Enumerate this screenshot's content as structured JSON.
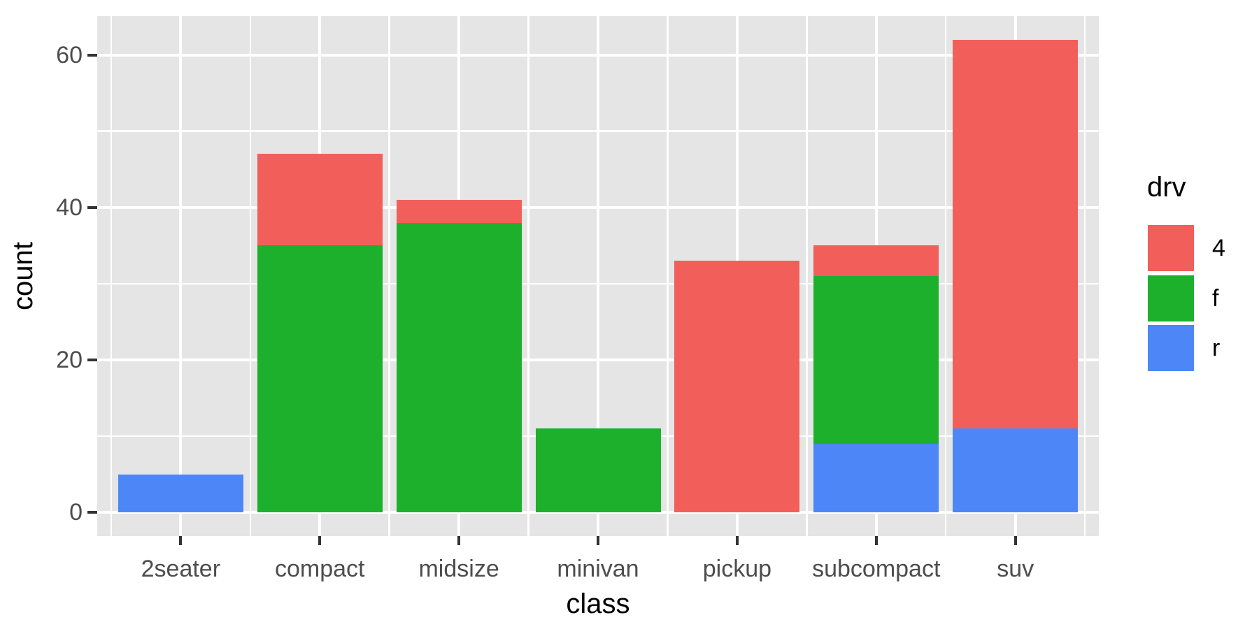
{
  "chart_data": {
    "type": "bar",
    "stacked": true,
    "title": "",
    "xlabel": "class",
    "ylabel": "count",
    "categories": [
      "2seater",
      "compact",
      "midsize",
      "minivan",
      "pickup",
      "subcompact",
      "suv"
    ],
    "series": [
      {
        "name": "4",
        "color": "#F25F5A",
        "values": [
          0,
          12,
          3,
          0,
          33,
          4,
          51
        ]
      },
      {
        "name": "f",
        "color": "#1CB02C",
        "values": [
          0,
          35,
          38,
          11,
          0,
          22,
          0
        ]
      },
      {
        "name": "r",
        "color": "#4D87F7",
        "values": [
          5,
          0,
          0,
          0,
          0,
          9,
          11
        ]
      }
    ],
    "stack_order_bottom_to_top": [
      "r",
      "f",
      "4"
    ],
    "totals": [
      5,
      47,
      41,
      11,
      33,
      35,
      62
    ],
    "yticks": [
      0,
      20,
      40,
      60
    ],
    "yminor": [
      10,
      30,
      50
    ],
    "ylim": [
      -3.1,
      65.1
    ],
    "grid": true,
    "legend_position": "right"
  },
  "legend": {
    "title": "drv",
    "items": [
      {
        "label": "4",
        "color": "#F25F5A"
      },
      {
        "label": "f",
        "color": "#1CB02C"
      },
      {
        "label": "r",
        "color": "#4D87F7"
      }
    ]
  },
  "style": {
    "panel_bg": "#E5E5E5",
    "grid_color": "#FFFFFF",
    "tick_mark_color": "#333333",
    "tick_label_color": "#4D4D4D",
    "axis_title_color": "#000000"
  }
}
